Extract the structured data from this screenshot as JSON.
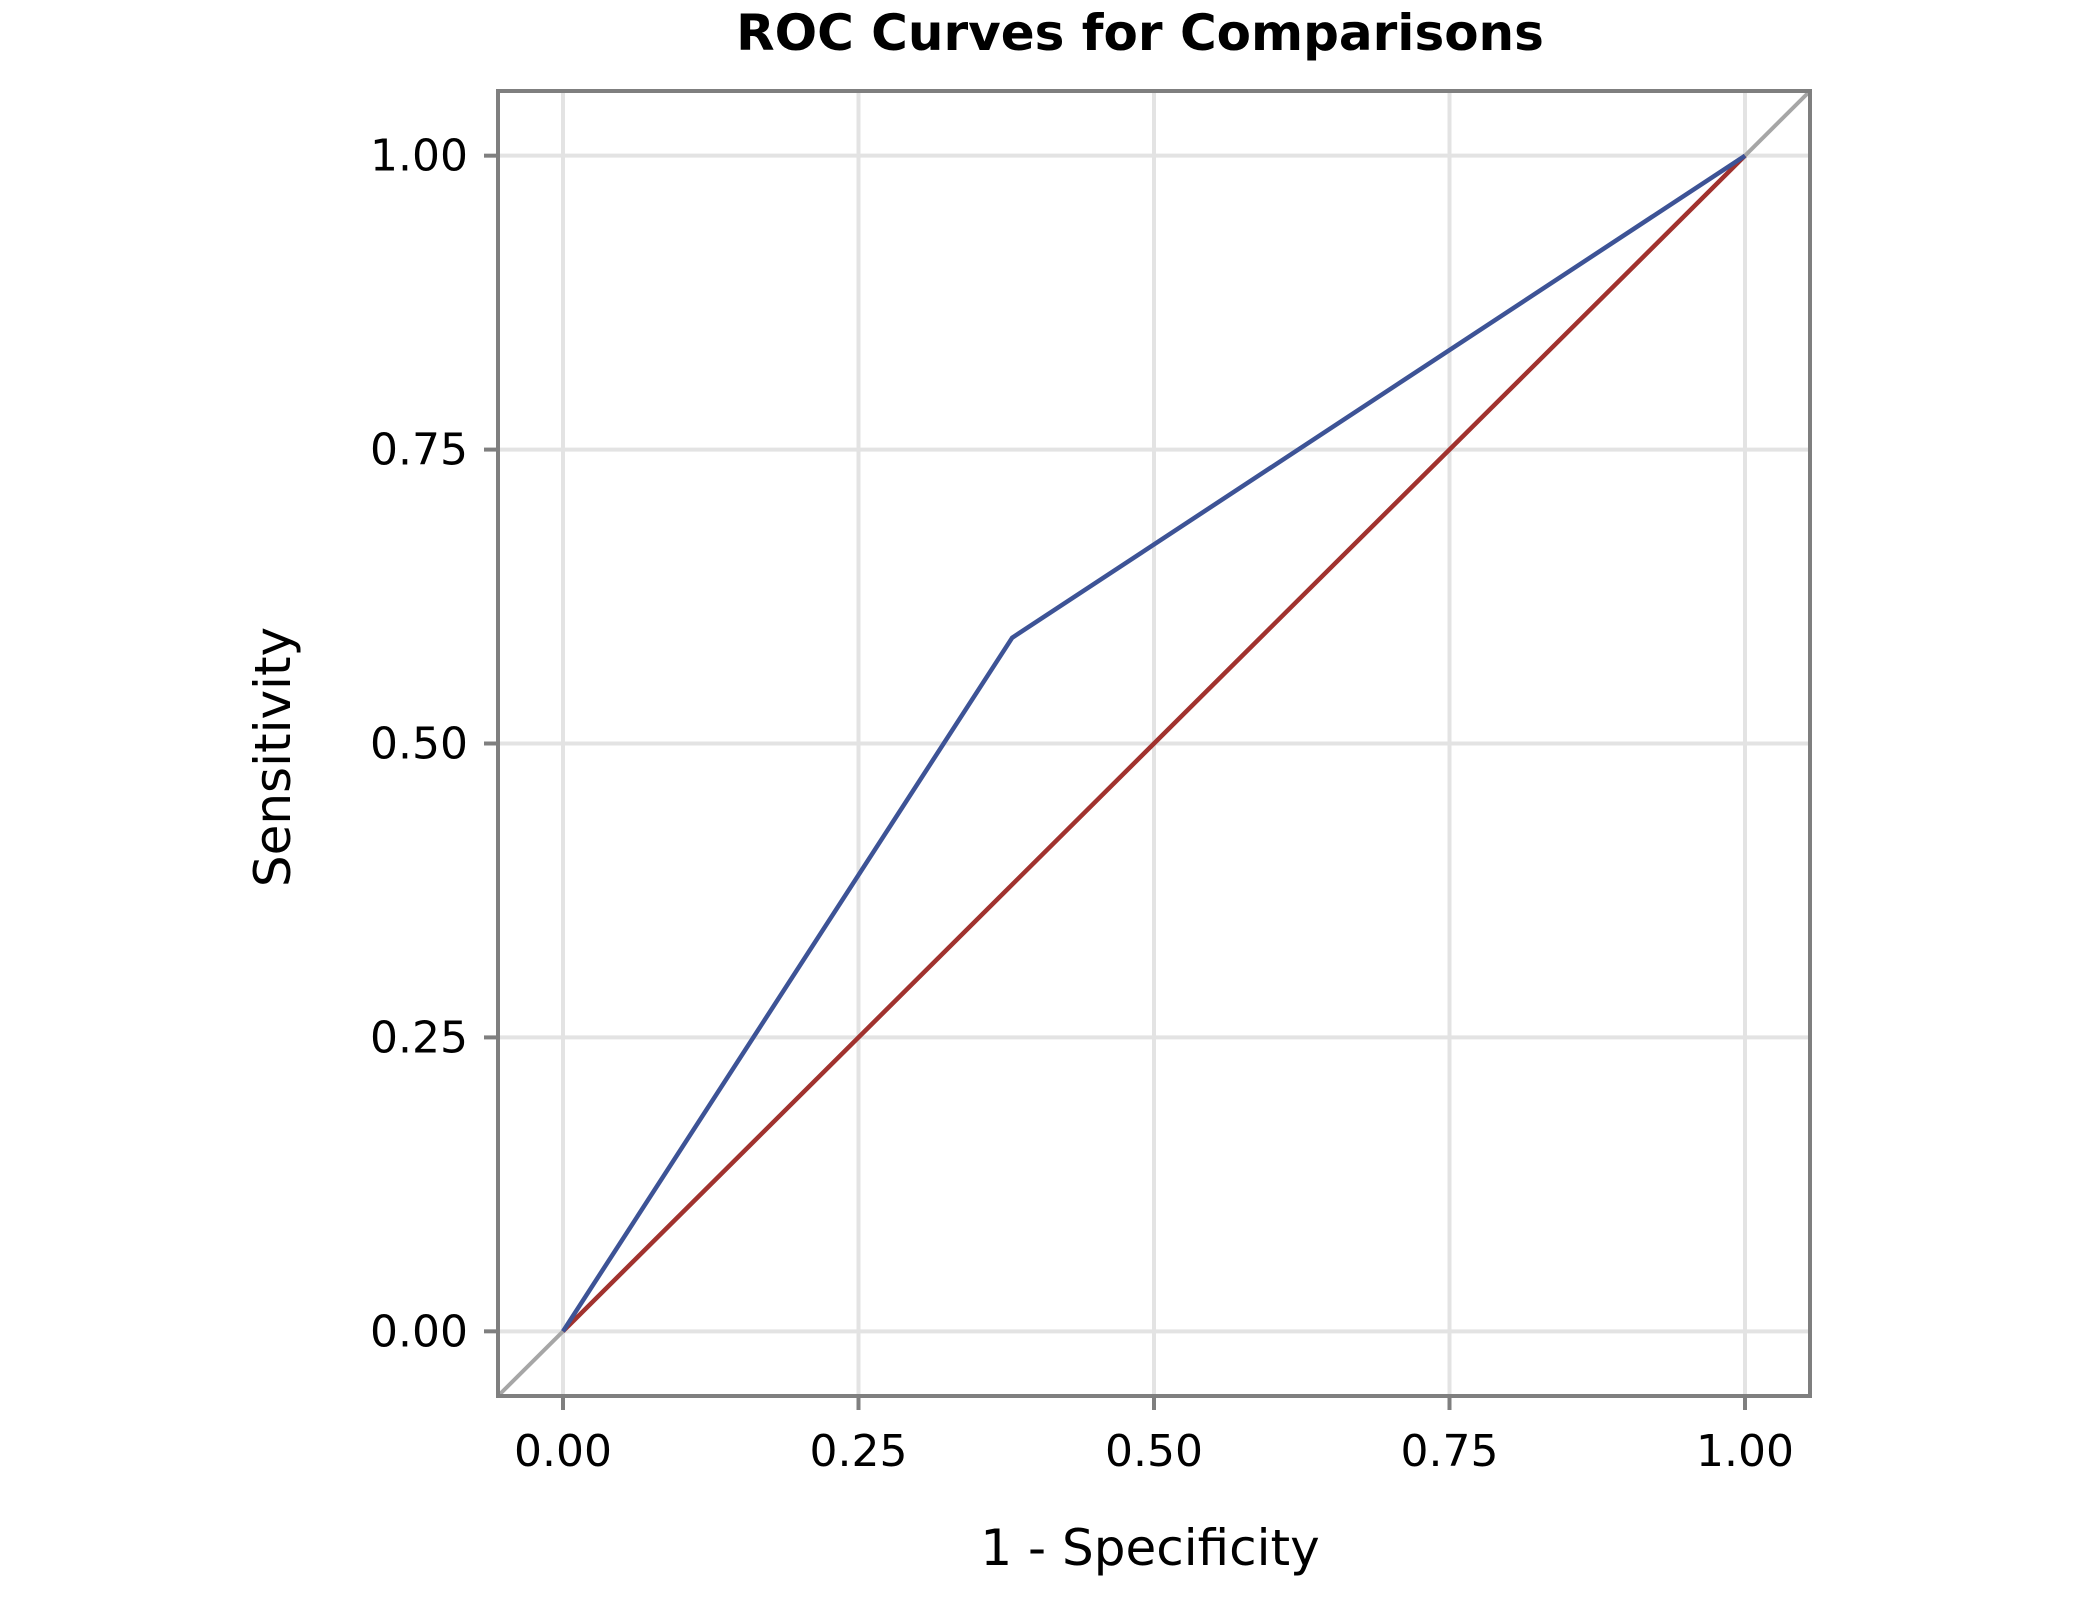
{
  "chart_data": {
    "type": "line",
    "title": "ROC Curves for Comparisons",
    "xlabel": "1 - Specificity",
    "ylabel": "Sensitivity",
    "xlim": [
      -0.055,
      1.055
    ],
    "ylim": [
      -0.055,
      1.055
    ],
    "x_ticks": [
      "0.00",
      "0.25",
      "0.50",
      "0.75",
      "1.00"
    ],
    "y_ticks": [
      "0.00",
      "0.25",
      "0.50",
      "0.75",
      "1.00"
    ],
    "grid": true,
    "legend": "none",
    "reference_line": {
      "x": [
        -0.055,
        1.055
      ],
      "y": [
        -0.055,
        1.055
      ],
      "color": "#a6a6a6"
    },
    "series": [
      {
        "x": [
          0.0,
          0.38,
          1.0
        ],
        "y": [
          0.0,
          0.59,
          1.0
        ],
        "color": "#3d5396"
      },
      {
        "x": [
          0.0,
          1.0
        ],
        "y": [
          0.0,
          1.0
        ],
        "color": "#a1322e"
      }
    ]
  }
}
